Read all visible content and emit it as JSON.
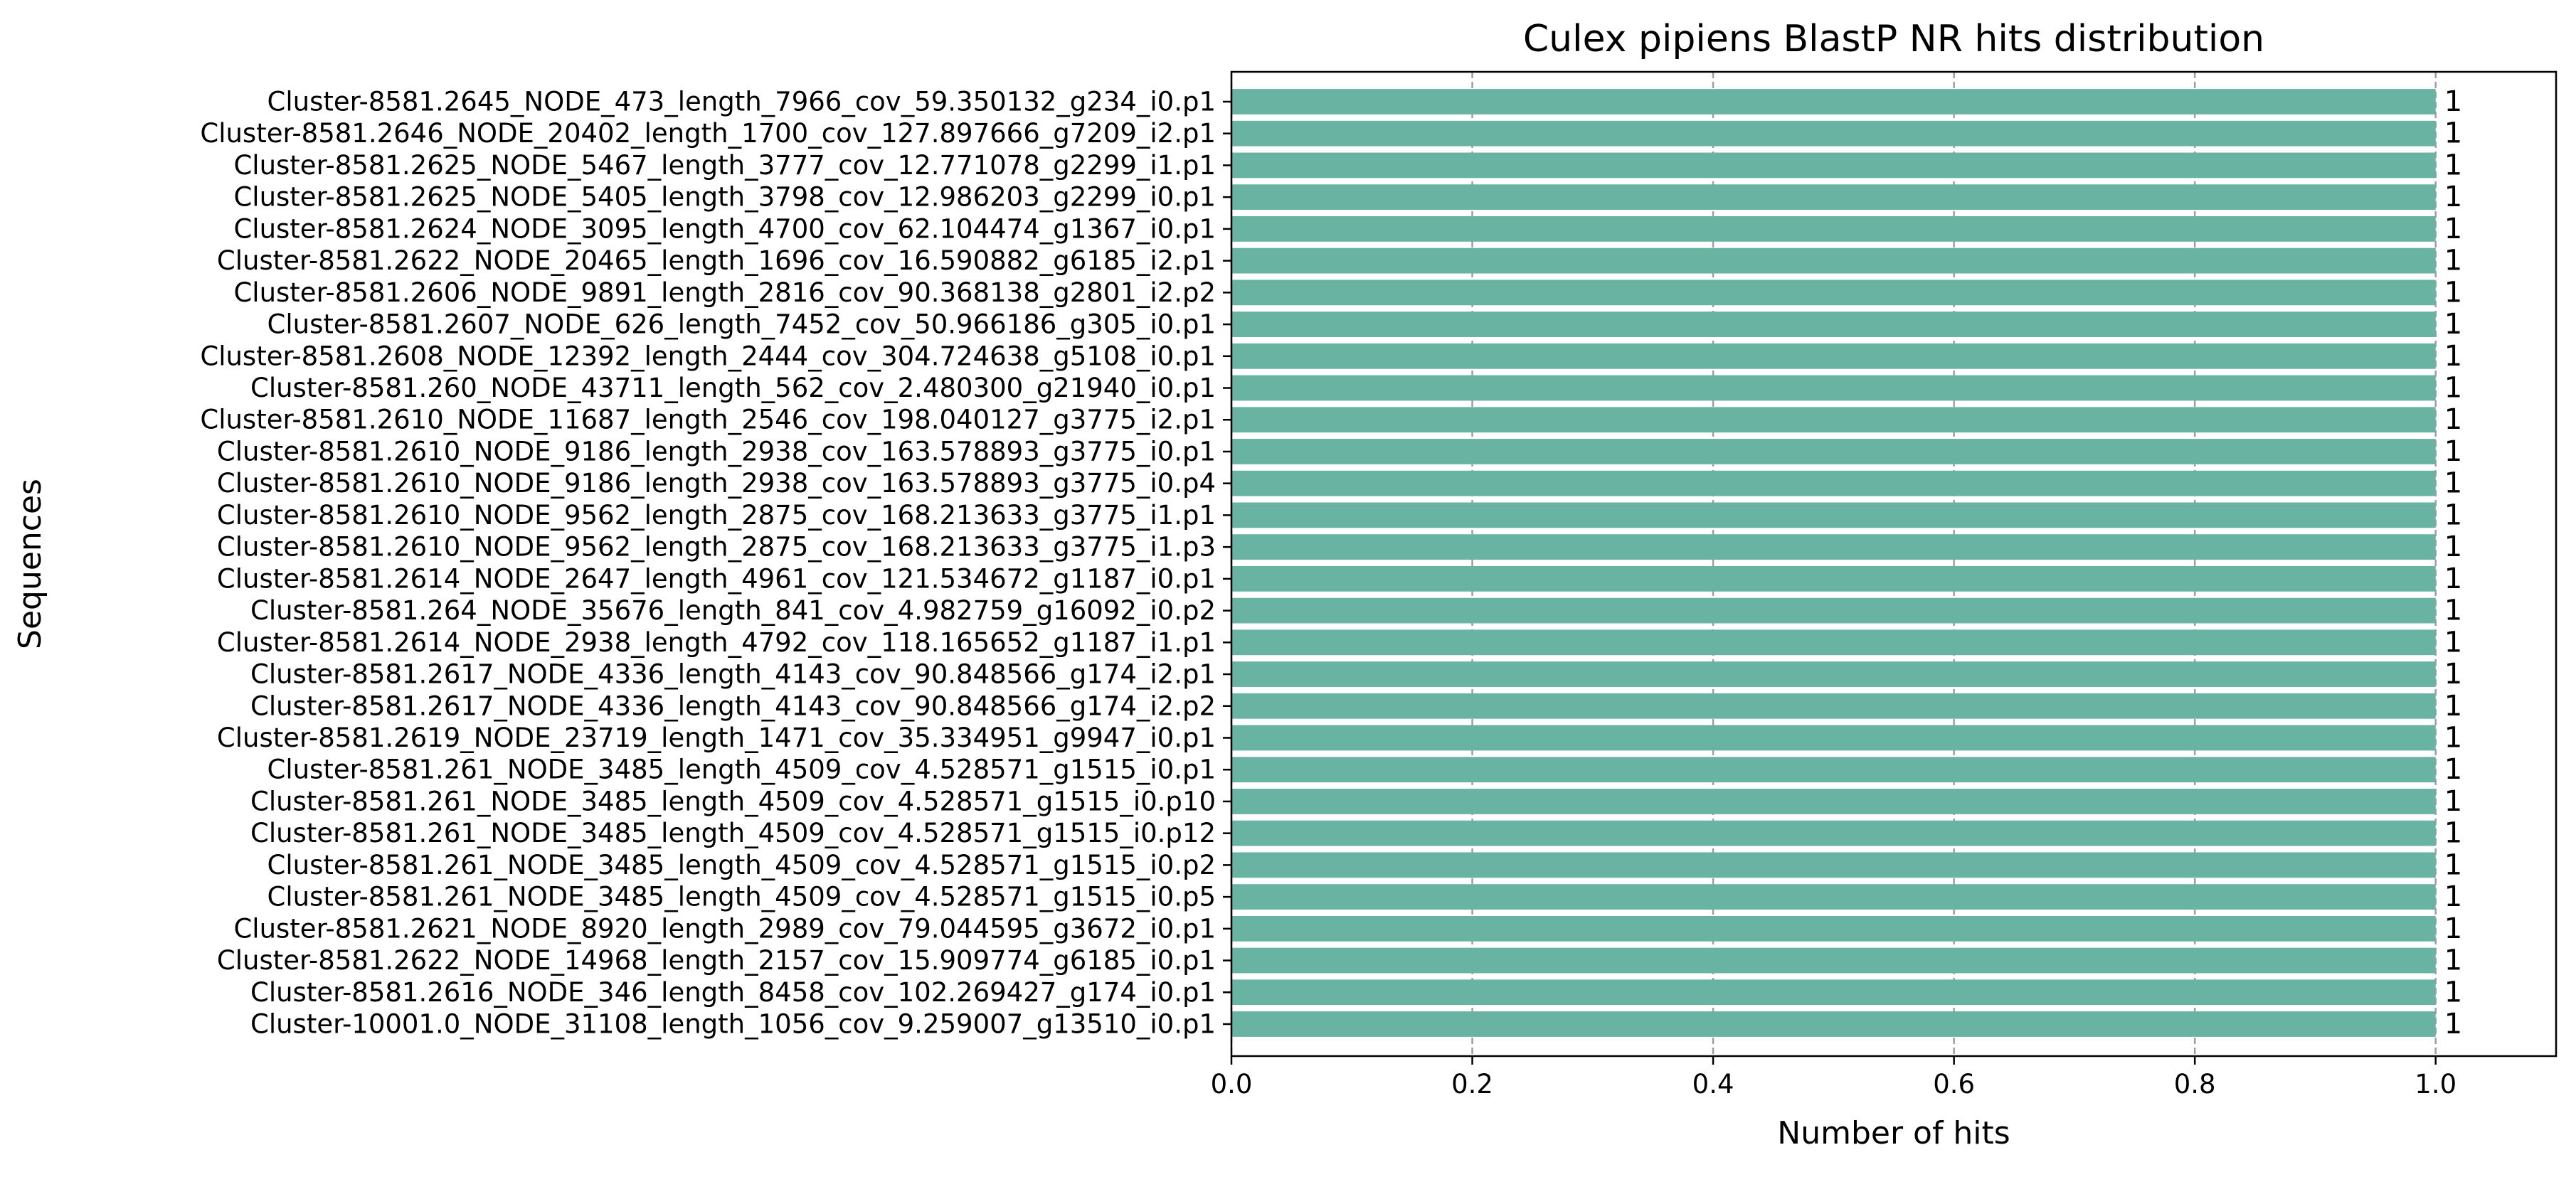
{
  "chart_data": {
    "type": "bar",
    "orientation": "horizontal",
    "title": "Culex pipiens BlastP NR hits distribution",
    "xlabel": "Number of hits",
    "ylabel": "Sequences",
    "xlim": [
      0.0,
      1.1
    ],
    "xticks": [
      0.0,
      0.2,
      0.4,
      0.6,
      0.8,
      1.0
    ],
    "xtick_labels": [
      "0.0",
      "0.2",
      "0.4",
      "0.6",
      "0.8",
      "1.0"
    ],
    "grid": "x-axis dashed",
    "bar_color": "#69b3a2",
    "categories": [
      "Cluster-8581.2645_NODE_473_length_7966_cov_59.350132_g234_i0.p1",
      "Cluster-8581.2646_NODE_20402_length_1700_cov_127.897666_g7209_i2.p1",
      "Cluster-8581.2625_NODE_5467_length_3777_cov_12.771078_g2299_i1.p1",
      "Cluster-8581.2625_NODE_5405_length_3798_cov_12.986203_g2299_i0.p1",
      "Cluster-8581.2624_NODE_3095_length_4700_cov_62.104474_g1367_i0.p1",
      "Cluster-8581.2622_NODE_20465_length_1696_cov_16.590882_g6185_i2.p1",
      "Cluster-8581.2606_NODE_9891_length_2816_cov_90.368138_g2801_i2.p2",
      "Cluster-8581.2607_NODE_626_length_7452_cov_50.966186_g305_i0.p1",
      "Cluster-8581.2608_NODE_12392_length_2444_cov_304.724638_g5108_i0.p1",
      "Cluster-8581.260_NODE_43711_length_562_cov_2.480300_g21940_i0.p1",
      "Cluster-8581.2610_NODE_11687_length_2546_cov_198.040127_g3775_i2.p1",
      "Cluster-8581.2610_NODE_9186_length_2938_cov_163.578893_g3775_i0.p1",
      "Cluster-8581.2610_NODE_9186_length_2938_cov_163.578893_g3775_i0.p4",
      "Cluster-8581.2610_NODE_9562_length_2875_cov_168.213633_g3775_i1.p1",
      "Cluster-8581.2610_NODE_9562_length_2875_cov_168.213633_g3775_i1.p3",
      "Cluster-8581.2614_NODE_2647_length_4961_cov_121.534672_g1187_i0.p1",
      "Cluster-8581.264_NODE_35676_length_841_cov_4.982759_g16092_i0.p2",
      "Cluster-8581.2614_NODE_2938_length_4792_cov_118.165652_g1187_i1.p1",
      "Cluster-8581.2617_NODE_4336_length_4143_cov_90.848566_g174_i2.p1",
      "Cluster-8581.2617_NODE_4336_length_4143_cov_90.848566_g174_i2.p2",
      "Cluster-8581.2619_NODE_23719_length_1471_cov_35.334951_g9947_i0.p1",
      "Cluster-8581.261_NODE_3485_length_4509_cov_4.528571_g1515_i0.p1",
      "Cluster-8581.261_NODE_3485_length_4509_cov_4.528571_g1515_i0.p10",
      "Cluster-8581.261_NODE_3485_length_4509_cov_4.528571_g1515_i0.p12",
      "Cluster-8581.261_NODE_3485_length_4509_cov_4.528571_g1515_i0.p2",
      "Cluster-8581.261_NODE_3485_length_4509_cov_4.528571_g1515_i0.p5",
      "Cluster-8581.2621_NODE_8920_length_2989_cov_79.044595_g3672_i0.p1",
      "Cluster-8581.2622_NODE_14968_length_2157_cov_15.909774_g6185_i0.p1",
      "Cluster-8581.2616_NODE_346_length_8458_cov_102.269427_g174_i0.p1",
      "Cluster-10001.0_NODE_31108_length_1056_cov_9.259007_g13510_i0.p1"
    ],
    "values": [
      1,
      1,
      1,
      1,
      1,
      1,
      1,
      1,
      1,
      1,
      1,
      1,
      1,
      1,
      1,
      1,
      1,
      1,
      1,
      1,
      1,
      1,
      1,
      1,
      1,
      1,
      1,
      1,
      1,
      1
    ],
    "data_labels": [
      "1",
      "1",
      "1",
      "1",
      "1",
      "1",
      "1",
      "1",
      "1",
      "1",
      "1",
      "1",
      "1",
      "1",
      "1",
      "1",
      "1",
      "1",
      "1",
      "1",
      "1",
      "1",
      "1",
      "1",
      "1",
      "1",
      "1",
      "1",
      "1",
      "1"
    ]
  }
}
